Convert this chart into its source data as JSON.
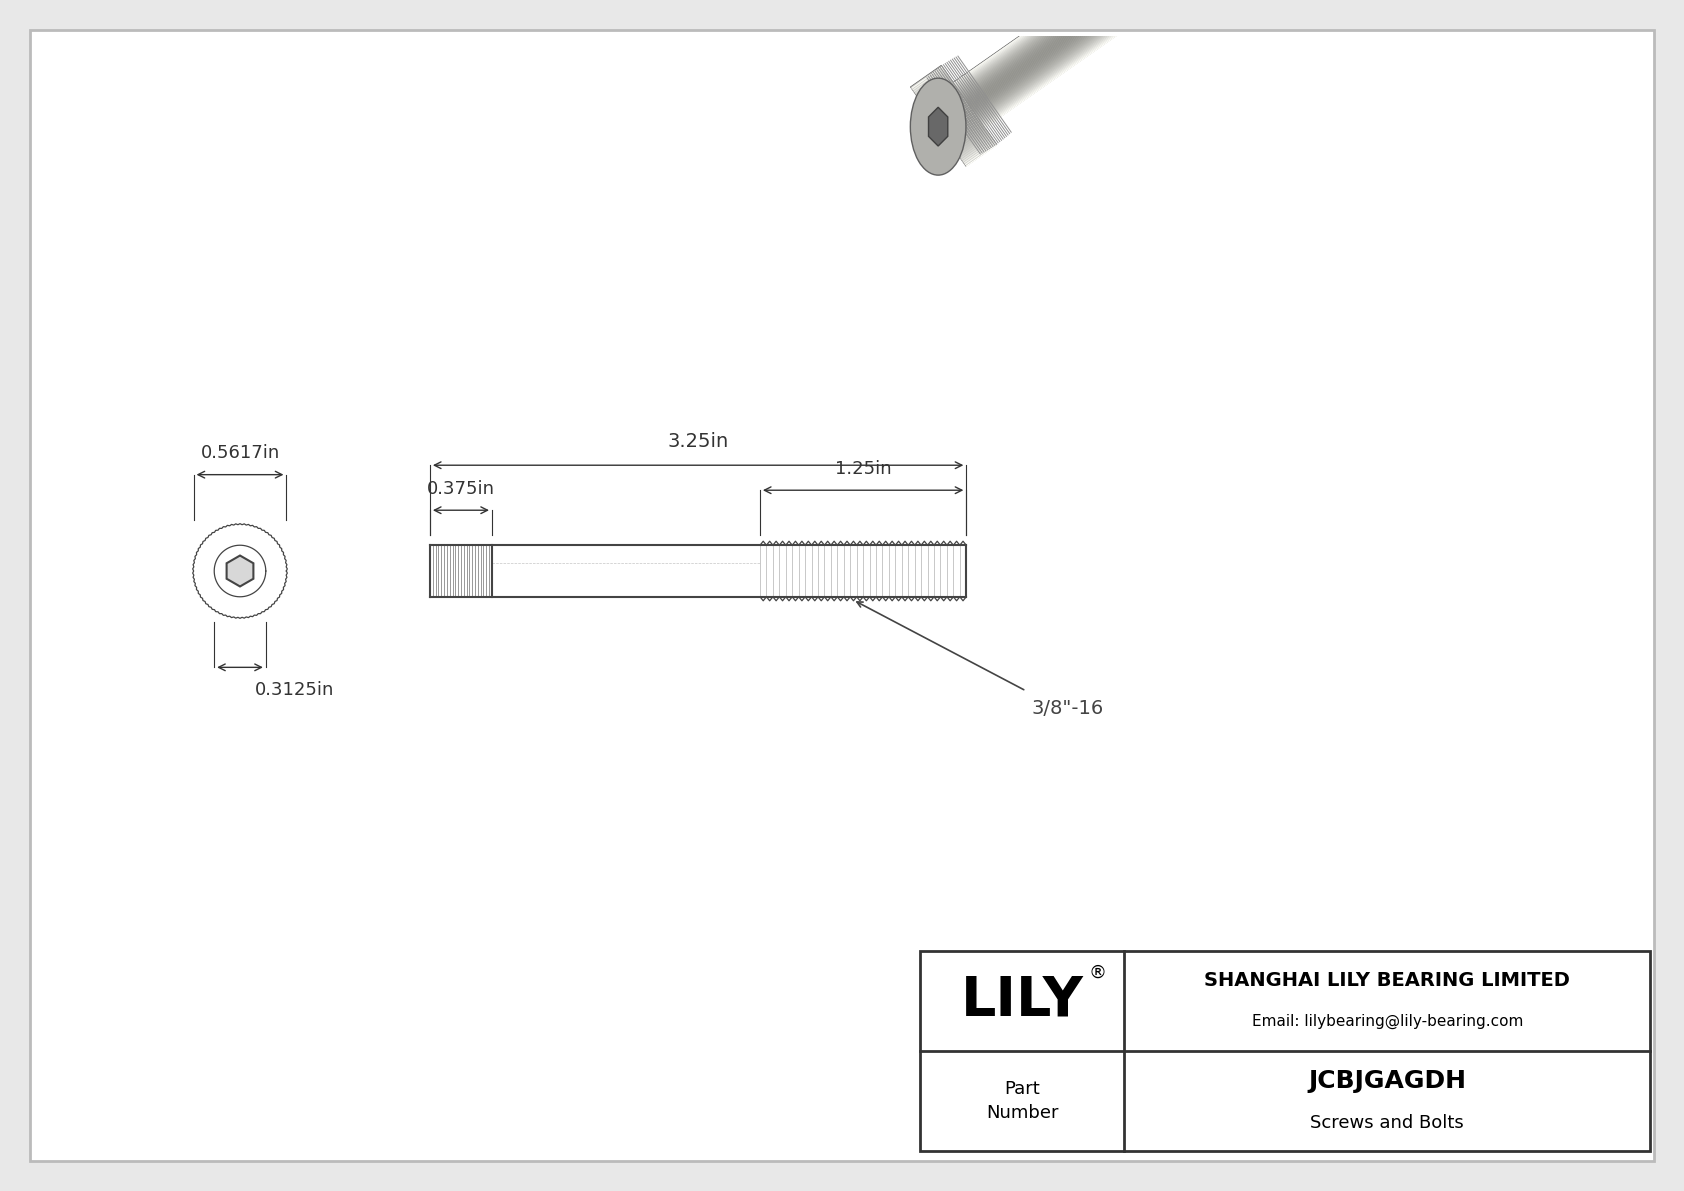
{
  "bg_color": "#e8e8e8",
  "inner_bg": "#ffffff",
  "dim_color": "#333333",
  "draw_color": "#444444",
  "title": "JCBJGAGDH",
  "subtitle": "Screws and Bolts",
  "company": "SHANGHAI LILY BEARING LIMITED",
  "email": "Email: lilybearing@lily-bearing.com",
  "part_label": "Part\nNumber",
  "logo_text": "LILY",
  "dim_head_width": "0.5617in",
  "dim_shaft_dia": "0.3125in",
  "dim_head_length": "0.375in",
  "dim_total_length": "3.25in",
  "dim_thread_length": "1.25in",
  "thread_spec": "3/8\"-16"
}
